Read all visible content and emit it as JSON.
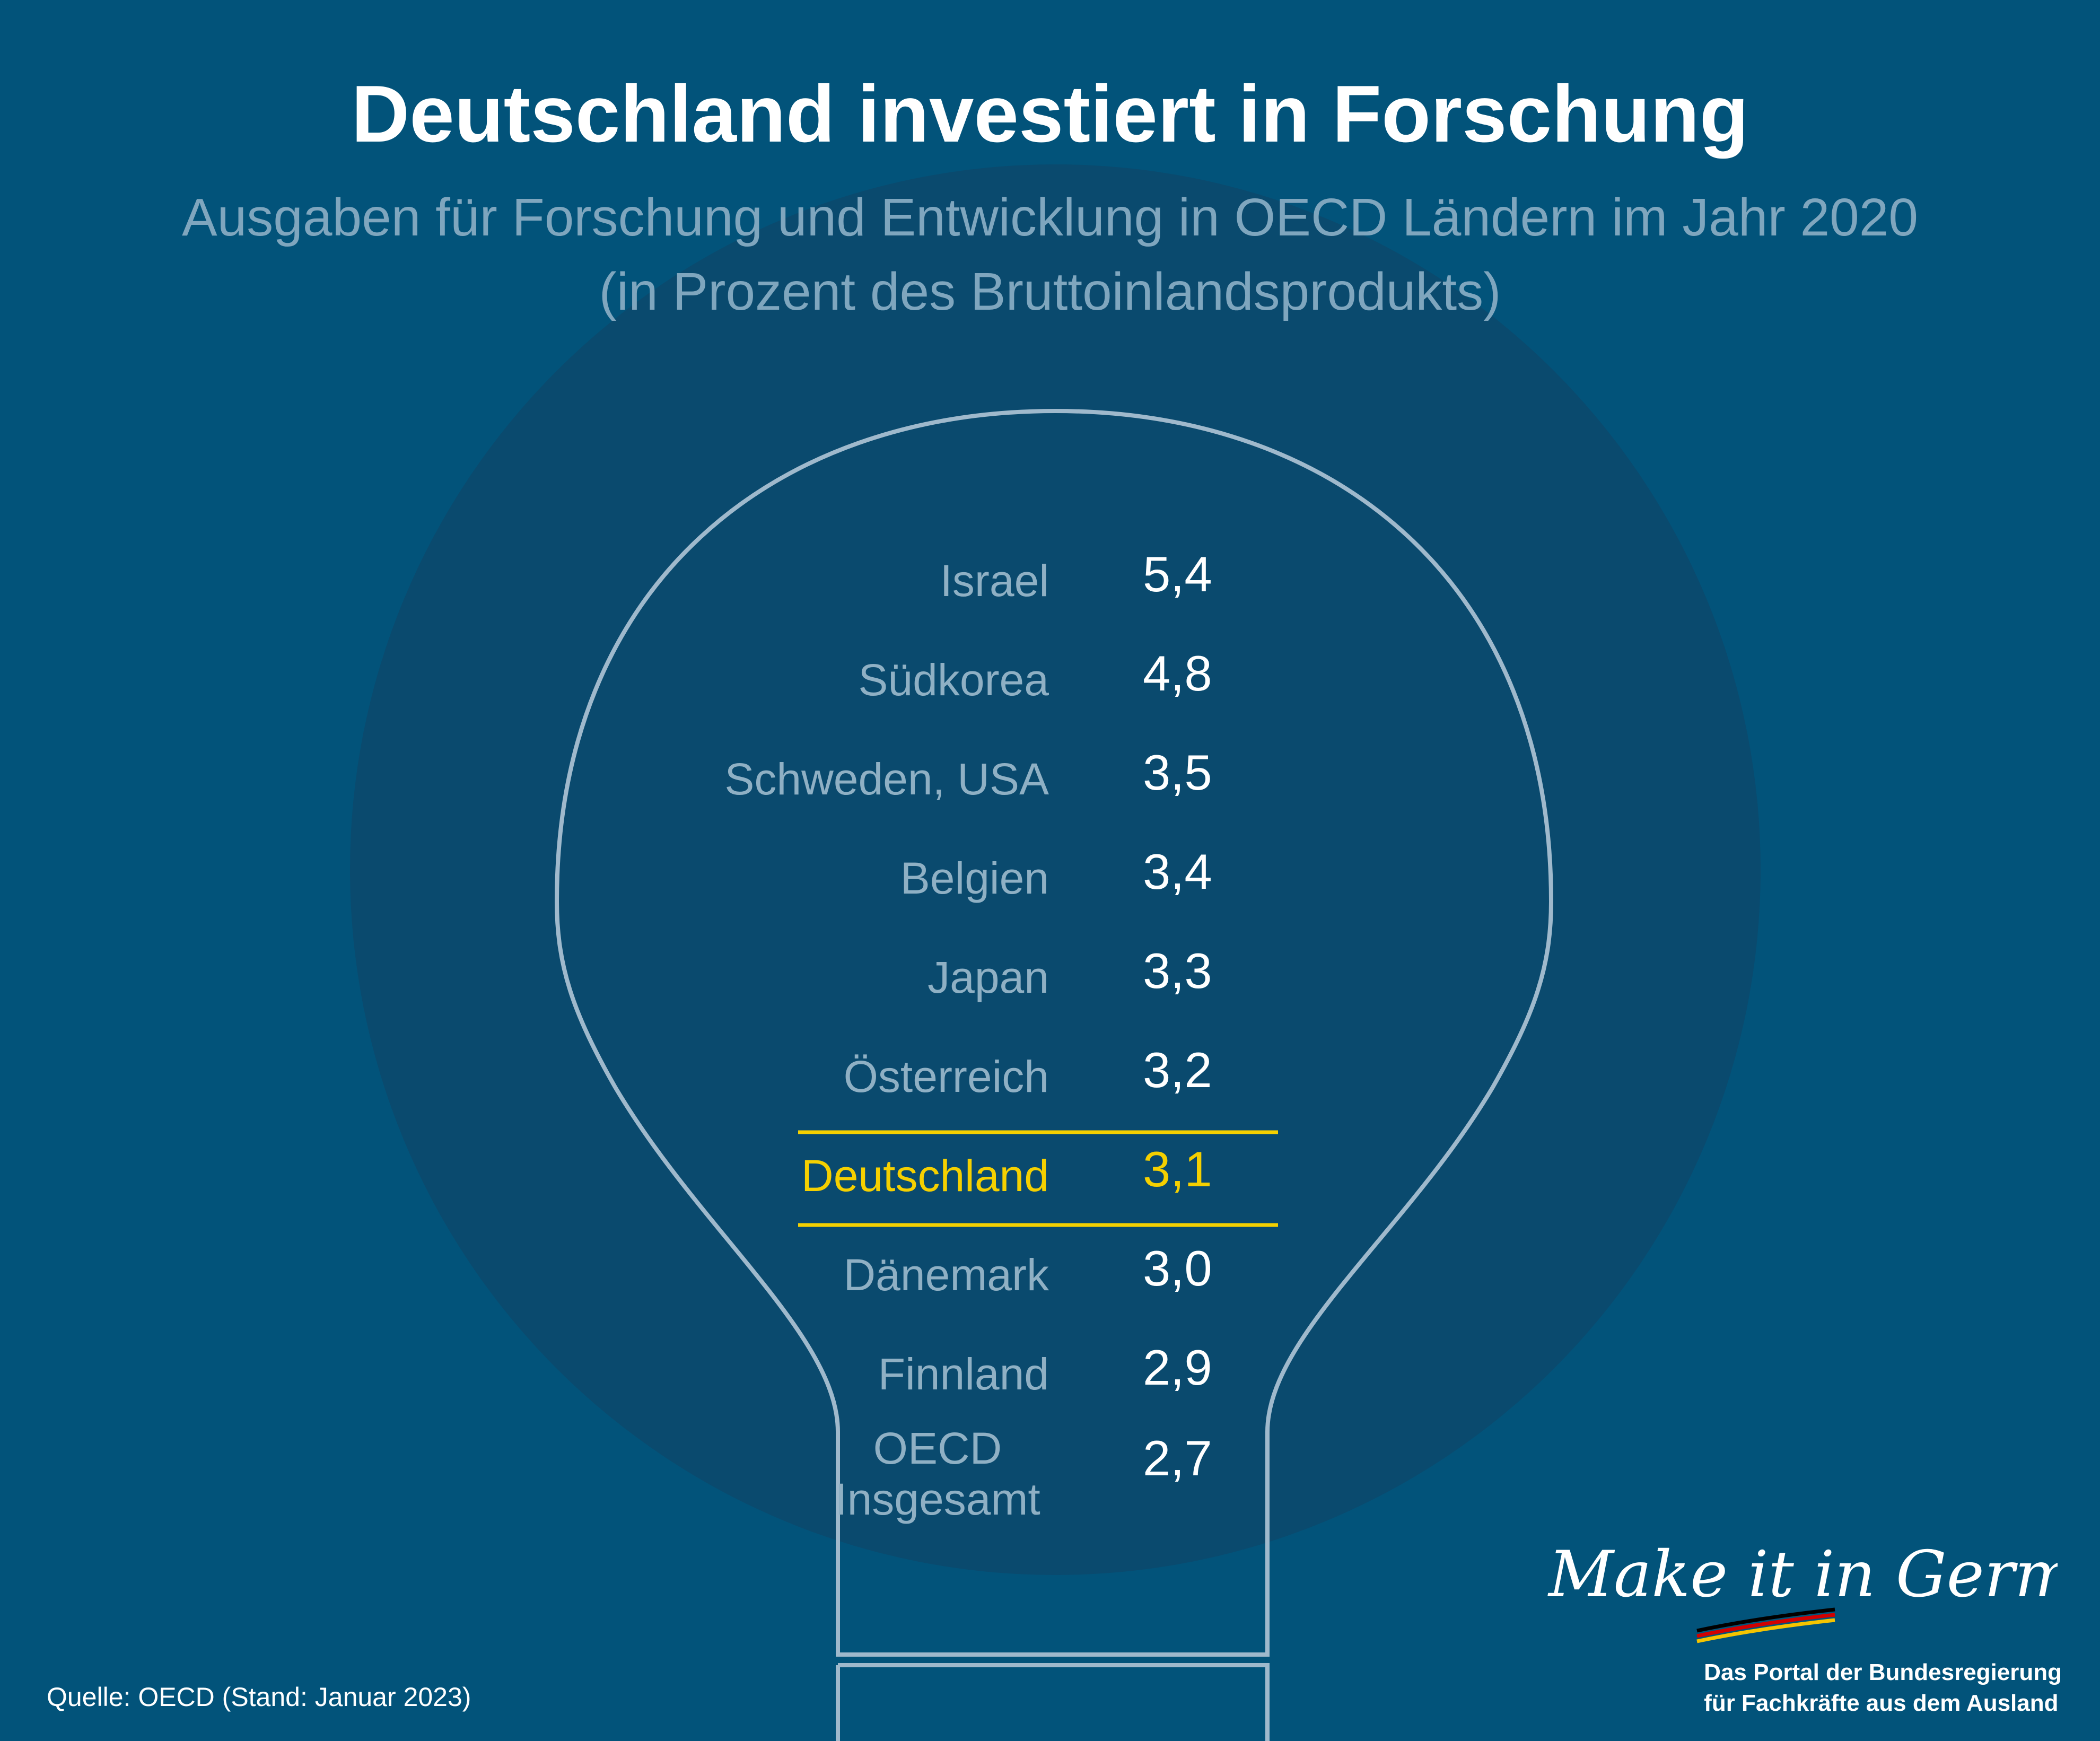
{
  "header": {
    "title": "Deutschland investiert in Forschung",
    "subtitle_line1": "Ausgaben für Forschung und Entwicklung in OECD Ländern im Jahr 2020",
    "subtitle_line2": "(in Prozent des Bruttoinlandsprodukts)"
  },
  "chart_data": {
    "type": "table",
    "title": "Deutschland investiert in Forschung",
    "subtitle": "Ausgaben für Forschung und Entwicklung in OECD Ländern im Jahr 2020 (in Prozent des Bruttoinlandsprodukts)",
    "rows": [
      {
        "label": "Israel",
        "value": 5.4,
        "display": "5,4"
      },
      {
        "label": "Südkorea",
        "value": 4.8,
        "display": "4,8"
      },
      {
        "label": "Schweden, USA",
        "value": 3.5,
        "display": "3,5"
      },
      {
        "label": "Belgien",
        "value": 3.4,
        "display": "3,4"
      },
      {
        "label": "Japan",
        "value": 3.3,
        "display": "3,3"
      },
      {
        "label": "Österreich",
        "value": 3.2,
        "display": "3,2"
      },
      {
        "label": "Deutschland",
        "value": 3.1,
        "display": "3,1",
        "highlight": true
      },
      {
        "label": "Dänemark",
        "value": 3.0,
        "display": "3,0"
      },
      {
        "label": "Finnland",
        "value": 2.9,
        "display": "2,9"
      },
      {
        "label": "OECD Insgesamt",
        "value": 2.7,
        "display": "2,7"
      }
    ],
    "highlight_color": "#f5d000"
  },
  "footer": {
    "source": "Quelle: OECD (Stand: Januar 2023)",
    "logo_text": "Make it in Germany",
    "portal_line1": "Das Portal der Bundesregierung",
    "portal_line2": "für Fachkräfte aus dem Ausland"
  },
  "colors": {
    "background": "#02537a",
    "circle": "#0a4a6e",
    "bulb_outline": "#9fb9cc",
    "label": "#8fb0c4",
    "value": "#ffffff",
    "highlight": "#f5d000"
  }
}
